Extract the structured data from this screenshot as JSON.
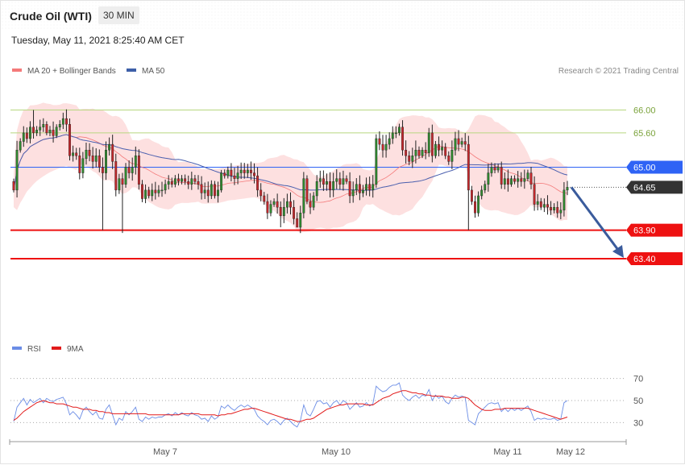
{
  "header": {
    "instrument": "Crude Oil (WTI)",
    "timeframe": "30 MIN",
    "timestamp": "Tuesday, May 11, 2021 8:25:40 AM CET",
    "credit": "Research © 2021 Trading Central"
  },
  "colors": {
    "bullish": "#2f8a2f",
    "bearish": "#c3272b",
    "ma20": "#f47a7a",
    "bollinger_fill": "#fde0e0",
    "ma50": "#4a5fae",
    "level_green": "#b7d77f",
    "level_blue": "#2f63f5",
    "level_red": "#ee1111",
    "current_price": "#333333",
    "arrow": "#3a5b9c",
    "rsi": "#6b8de6",
    "rsi_ma": "#e21b1b"
  },
  "chart_data": [
    {
      "type": "candlestick",
      "title": "Crude Oil (WTI)",
      "timeframe": "30 MIN",
      "legend": [
        {
          "label": "MA 20 + Bollinger Bands",
          "color": "#f47a7a"
        },
        {
          "label": "MA 50",
          "color": "#3d5fa8"
        }
      ],
      "x_ticks": [
        "May 7",
        "May 10",
        "May 11",
        "May 12"
      ],
      "ylim": [
        62.95,
        66.5
      ],
      "closes": [
        64.6,
        65.3,
        65.45,
        65.6,
        65.5,
        65.7,
        65.6,
        65.65,
        65.7,
        65.75,
        65.6,
        65.65,
        65.55,
        65.7,
        65.75,
        65.85,
        65.75,
        65.2,
        65.25,
        65.2,
        64.9,
        65.15,
        65.3,
        65.2,
        65.1,
        65.2,
        65.0,
        64.9,
        65.3,
        65.4,
        65.1,
        64.6,
        64.8,
        64.7,
        65.0,
        64.9,
        65.0,
        65.2,
        64.7,
        64.45,
        64.6,
        64.5,
        64.6,
        64.55,
        64.6,
        64.6,
        64.7,
        64.75,
        64.7,
        64.8,
        64.75,
        64.8,
        64.75,
        64.7,
        64.8,
        64.75,
        64.7,
        64.55,
        64.6,
        64.5,
        64.7,
        64.5,
        64.6,
        64.9,
        64.85,
        64.95,
        64.85,
        64.8,
        64.9,
        64.95,
        64.9,
        64.95,
        64.9,
        64.85,
        64.6,
        64.5,
        64.4,
        64.2,
        64.35,
        64.4,
        64.3,
        64.15,
        64.3,
        64.4,
        64.3,
        64.1,
        63.95,
        64.2,
        64.8,
        64.4,
        64.3,
        64.5,
        64.75,
        64.8,
        64.7,
        64.75,
        64.6,
        64.75,
        64.8,
        64.7,
        64.8,
        64.75,
        64.5,
        64.6,
        64.7,
        64.55,
        64.6,
        64.7,
        64.6,
        64.7,
        65.5,
        65.4,
        65.3,
        65.4,
        65.5,
        65.6,
        65.6,
        65.7,
        65.3,
        65.2,
        65.1,
        65.2,
        65.3,
        65.2,
        65.3,
        65.25,
        65.6,
        65.2,
        65.4,
        65.3,
        65.35,
        65.2,
        65.1,
        65.3,
        65.5,
        65.4,
        65.45,
        65.4,
        64.6,
        64.4,
        64.2,
        64.5,
        64.6,
        64.7,
        64.9,
        65.0,
        64.95,
        65.0,
        64.7,
        64.8,
        64.7,
        64.8,
        64.75,
        64.8,
        64.75,
        64.8,
        64.9,
        64.7,
        64.35,
        64.4,
        64.3,
        64.35,
        64.3,
        64.25,
        64.3,
        64.2,
        64.25,
        64.6,
        64.65
      ]
    },
    {
      "type": "line",
      "title": "RSI",
      "legend": [
        {
          "label": "RSI",
          "color": "#6b8de6"
        },
        {
          "label": "9MA",
          "color": "#e21b1b"
        }
      ],
      "ylim": [
        20,
        80
      ],
      "y_ticks": [
        "70",
        "50",
        "30"
      ],
      "rsi": [
        31,
        44,
        48,
        52,
        46,
        51,
        48,
        50,
        52,
        48,
        52,
        50,
        49,
        51,
        52,
        53,
        47,
        37,
        40,
        37,
        33,
        41,
        44,
        40,
        37,
        40,
        34,
        33,
        42,
        46,
        37,
        28,
        34,
        32,
        40,
        37,
        40,
        44,
        33,
        31,
        35,
        33,
        35,
        34,
        35,
        35,
        37,
        38,
        36,
        39,
        37,
        39,
        37,
        36,
        39,
        37,
        36,
        33,
        34,
        31,
        36,
        33,
        35,
        45,
        43,
        46,
        43,
        41,
        44,
        46,
        44,
        46,
        44,
        42,
        36,
        33,
        31,
        28,
        32,
        33,
        31,
        28,
        32,
        34,
        31,
        28,
        26,
        32,
        46,
        38,
        36,
        42,
        49,
        50,
        47,
        48,
        44,
        48,
        50,
        46,
        50,
        48,
        42,
        45,
        48,
        44,
        45,
        48,
        45,
        47,
        63,
        60,
        58,
        59,
        62,
        64,
        64,
        66,
        55,
        52,
        50,
        53,
        55,
        52,
        55,
        54,
        60,
        50,
        55,
        52,
        54,
        49,
        47,
        52,
        55,
        53,
        54,
        53,
        32,
        30,
        28,
        38,
        41,
        44,
        47,
        48,
        47,
        48,
        40,
        43,
        40,
        43,
        41,
        43,
        41,
        43,
        45,
        40,
        32,
        34,
        33,
        34,
        33,
        33,
        34,
        32,
        33,
        48,
        50
      ],
      "rsi_9ma": [
        32,
        34,
        37,
        40,
        42,
        44,
        46,
        48,
        49,
        50,
        49,
        48,
        48,
        47,
        47,
        47,
        46,
        45,
        44,
        44,
        43,
        42,
        42,
        42,
        41,
        41,
        40,
        40,
        39,
        39,
        38,
        38,
        38,
        38,
        38,
        38,
        38,
        38,
        38,
        38,
        38,
        37,
        37,
        37,
        37,
        37,
        37,
        37,
        37,
        37,
        37,
        38,
        38,
        38,
        38,
        38,
        38,
        37,
        37,
        37,
        37,
        37,
        36,
        37,
        37,
        38,
        38,
        39,
        40,
        41,
        42,
        42,
        43,
        43,
        42,
        41,
        40,
        39,
        38,
        37,
        36,
        35,
        34,
        33,
        33,
        32,
        31,
        31,
        32,
        33,
        33,
        34,
        36,
        38,
        40,
        42,
        43,
        44,
        45,
        46,
        46,
        47,
        47,
        47,
        47,
        47,
        47,
        46,
        46,
        46,
        48,
        50,
        52,
        53,
        54,
        56,
        57,
        58,
        59,
        59,
        58,
        57,
        57,
        56,
        56,
        55,
        55,
        54,
        54,
        54,
        54,
        53,
        53,
        52,
        52,
        52,
        53,
        53,
        52,
        49,
        46,
        44,
        42,
        41,
        41,
        41,
        42,
        42,
        42,
        43,
        43,
        43,
        43,
        43,
        43,
        43,
        43,
        42,
        41,
        40,
        39,
        38,
        37,
        36,
        35,
        34,
        33,
        34,
        35
      ]
    }
  ],
  "levels": [
    {
      "value": 66.0,
      "label": "66.00",
      "kind": "resistance"
    },
    {
      "value": 65.6,
      "label": "65.60",
      "kind": "resistance"
    },
    {
      "value": 65.0,
      "label": "65.00",
      "kind": "pivot"
    },
    {
      "value": 64.65,
      "label": "64.65",
      "kind": "last"
    },
    {
      "value": 63.9,
      "label": "63.90",
      "kind": "target"
    },
    {
      "value": 63.4,
      "label": "63.40",
      "kind": "target"
    }
  ],
  "forecast_arrow": {
    "from": 64.65,
    "to": 63.4,
    "direction": "down"
  }
}
